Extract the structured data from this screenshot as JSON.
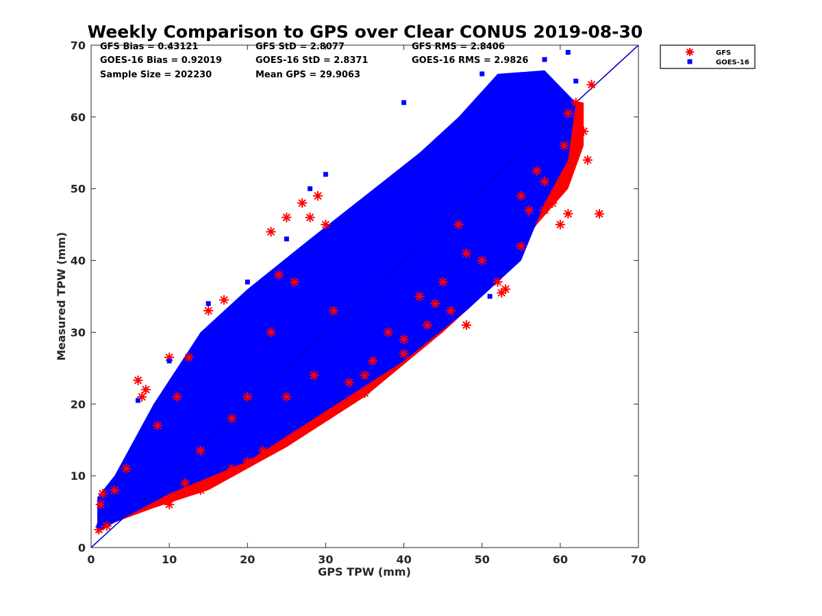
{
  "chart_data": {
    "type": "scatter",
    "title": "Weekly Comparison to GPS over Clear CONUS 2019-08-30",
    "xlabel": "GPS TPW (mm)",
    "ylabel": "Measured TPW (mm)",
    "xlim": [
      0,
      70
    ],
    "ylim": [
      0,
      70
    ],
    "xticks": [
      "0",
      "10",
      "20",
      "30",
      "40",
      "50",
      "60",
      "70"
    ],
    "yticks": [
      "0",
      "10",
      "20",
      "30",
      "40",
      "50",
      "60",
      "70"
    ],
    "grid": false,
    "legend_position": "outside-top-right",
    "reference_line": {
      "from": [
        0,
        0
      ],
      "to": [
        70,
        70
      ],
      "color": "#0000cc"
    },
    "stats": [
      [
        "GFS Bias = 0.43121",
        "GFS StD = 2.8077",
        "GFS RMS = 2.8406"
      ],
      [
        "GOES-16 Bias = 0.92019",
        "GOES-16 StD = 2.8371",
        "GOES-16 RMS = 2.9826"
      ],
      [
        "Sample Size = 202230",
        "Mean GPS = 29.9063",
        ""
      ]
    ],
    "series": [
      {
        "name": "GFS",
        "marker": "asterisk",
        "color": "#ff0000",
        "x": [
          1,
          1.2,
          1.5,
          2,
          3,
          4.5,
          6,
          6.5,
          7,
          8.5,
          10,
          11,
          12.5,
          14,
          15,
          17,
          18,
          20,
          22,
          23,
          24,
          25,
          26,
          27,
          28,
          28.5,
          29,
          30,
          31,
          33,
          35,
          36,
          38,
          40,
          42,
          44,
          45,
          47,
          48,
          50,
          52,
          52.5,
          53,
          55,
          56,
          57,
          58,
          59,
          60,
          60.5,
          61,
          62,
          63,
          63.5,
          64,
          65,
          10,
          12,
          14,
          18,
          20,
          23,
          25,
          35,
          40,
          43,
          46,
          48,
          55,
          58,
          61
        ],
        "y": [
          2.5,
          6,
          7.5,
          3,
          8,
          11,
          23.3,
          21,
          22,
          17,
          26.5,
          21,
          26.5,
          8,
          33,
          34.5,
          18,
          21,
          13.5,
          44,
          38,
          46,
          37,
          48,
          46,
          24,
          49,
          45,
          33,
          23,
          21.5,
          26,
          30,
          27,
          35,
          34,
          37,
          45,
          31,
          40,
          37,
          35.5,
          36,
          49,
          47,
          52.5,
          47,
          48,
          45,
          56,
          46.5,
          62,
          58,
          54,
          64.5,
          46.5,
          6,
          9,
          13.5,
          11,
          12,
          30,
          21,
          24,
          29,
          31,
          33,
          41,
          42,
          51,
          60.5
        ]
      },
      {
        "name": "GOES-16",
        "marker": "square",
        "color": "#0000ff",
        "x": [
          1,
          2,
          3,
          5,
          6,
          8,
          10,
          12,
          15,
          18,
          20,
          23,
          25,
          27,
          29,
          30,
          32,
          35,
          37,
          40,
          42,
          44,
          46,
          48,
          50,
          52,
          54,
          56,
          58,
          60,
          62,
          6,
          10,
          15,
          20,
          25,
          28,
          30,
          40,
          43,
          50,
          56,
          58,
          61,
          51
        ],
        "y": [
          3,
          6,
          5,
          9,
          12,
          14,
          17,
          18,
          22,
          25,
          27,
          28,
          32,
          33,
          35,
          37,
          37,
          42,
          45,
          45,
          47,
          50,
          50,
          55,
          55,
          58,
          58,
          60,
          60,
          62,
          65,
          20.5,
          26,
          34,
          37,
          43,
          50,
          52,
          62,
          55,
          66,
          60,
          68,
          69,
          35
        ]
      }
    ]
  }
}
